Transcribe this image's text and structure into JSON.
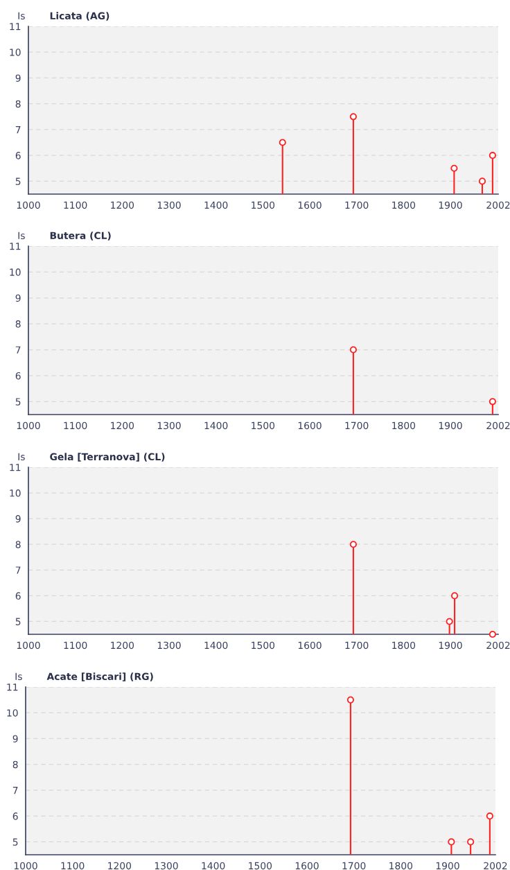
{
  "chart_data": [
    {
      "type": "lollipop",
      "title": "Licata (AG)",
      "ylabel": "Is",
      "x": [
        1542,
        1693,
        1908,
        1968,
        1990
      ],
      "values": [
        6.5,
        7.5,
        5.5,
        5,
        6
      ],
      "color": "#ff2020",
      "marker": "circle",
      "xlim": [
        1000,
        2002
      ],
      "xticks": [
        1000,
        1100,
        1200,
        1300,
        1400,
        1500,
        1600,
        1700,
        1800,
        1900,
        2002
      ],
      "ylim": [
        4.5,
        11
      ],
      "yticks": [
        5,
        6,
        7,
        8,
        9,
        10,
        11
      ],
      "grid": "y"
    },
    {
      "type": "lollipop",
      "title": "Butera (CL)",
      "ylabel": "Is",
      "x": [
        1693,
        1990
      ],
      "values": [
        7,
        5
      ],
      "color": "#ff2020",
      "marker": "circle",
      "xlim": [
        1000,
        2002
      ],
      "xticks": [
        1000,
        1100,
        1200,
        1300,
        1400,
        1500,
        1600,
        1700,
        1800,
        1900,
        2002
      ],
      "ylim": [
        4.5,
        11
      ],
      "yticks": [
        5,
        6,
        7,
        8,
        9,
        10,
        11
      ],
      "grid": "y"
    },
    {
      "type": "lollipop",
      "title": "Gela [Terranova] (CL)",
      "ylabel": "Is",
      "x": [
        1693,
        1898,
        1909,
        1990
      ],
      "values": [
        8,
        5,
        6,
        4.5
      ],
      "color": "#ff2020",
      "marker": "circle",
      "xlim": [
        1000,
        2002
      ],
      "xticks": [
        1000,
        1100,
        1200,
        1300,
        1400,
        1500,
        1600,
        1700,
        1800,
        1900,
        2002
      ],
      "ylim": [
        4.5,
        11
      ],
      "yticks": [
        5,
        6,
        7,
        8,
        9,
        10,
        11
      ],
      "grid": "y"
    },
    {
      "type": "lollipop",
      "title": "Acate [Biscari] (RG)",
      "ylabel": "Is",
      "x": [
        1693,
        1908,
        1949,
        1990
      ],
      "values": [
        10.5,
        5,
        5,
        6
      ],
      "color": "#ff2020",
      "marker": "circle",
      "xlim": [
        1000,
        2002
      ],
      "xticks": [
        1000,
        1100,
        1200,
        1300,
        1400,
        1500,
        1600,
        1700,
        1800,
        1900,
        2002
      ],
      "ylim": [
        4.5,
        11
      ],
      "yticks": [
        5,
        6,
        7,
        8,
        9,
        10,
        11
      ],
      "grid": "y"
    }
  ]
}
